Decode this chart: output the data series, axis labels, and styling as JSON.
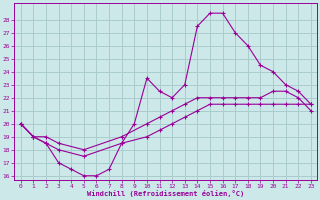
{
  "bg_color": "#cce8e8",
  "grid_color": "#aacccc",
  "line_color": "#990099",
  "xlabel": "Windchill (Refroidissement éolien,°C)",
  "xlim": [
    0,
    23
  ],
  "ylim": [
    16,
    29
  ],
  "xticks": [
    0,
    1,
    2,
    3,
    4,
    5,
    6,
    7,
    8,
    9,
    10,
    11,
    12,
    13,
    14,
    15,
    16,
    17,
    18,
    19,
    20,
    21,
    22,
    23
  ],
  "yticks": [
    16,
    17,
    18,
    19,
    20,
    21,
    22,
    23,
    24,
    25,
    26,
    27,
    28
  ],
  "curve1_x": [
    0,
    1,
    2,
    3,
    4,
    5,
    6,
    7,
    8,
    9,
    10,
    11,
    12,
    13,
    14,
    15,
    16,
    17,
    18,
    19,
    20,
    21,
    22,
    23
  ],
  "curve1_y": [
    20.0,
    19.0,
    18.5,
    17.0,
    16.5,
    16.0,
    16.0,
    16.5,
    18.5,
    20.0,
    23.5,
    22.5,
    22.0,
    23.0,
    27.5,
    28.5,
    28.5,
    27.0,
    26.0,
    24.5,
    24.0,
    23.0,
    22.5,
    21.5
  ],
  "curve2_x": [
    0,
    1,
    2,
    3,
    5,
    8,
    10,
    11,
    12,
    13,
    14,
    15,
    16,
    17,
    18,
    19,
    20,
    21,
    22,
    23
  ],
  "curve2_y": [
    20.0,
    19.0,
    19.0,
    18.5,
    18.0,
    19.0,
    20.0,
    20.5,
    21.0,
    21.5,
    22.0,
    22.0,
    22.0,
    22.0,
    22.0,
    22.0,
    22.5,
    22.5,
    22.0,
    21.0
  ],
  "curve3_x": [
    0,
    1,
    2,
    3,
    5,
    8,
    10,
    11,
    12,
    13,
    14,
    15,
    16,
    17,
    18,
    19,
    20,
    21,
    22,
    23
  ],
  "curve3_y": [
    20.0,
    19.0,
    18.5,
    18.0,
    17.5,
    18.5,
    19.0,
    19.5,
    20.0,
    20.5,
    21.0,
    21.5,
    21.5,
    21.5,
    21.5,
    21.5,
    21.5,
    21.5,
    21.5,
    21.5
  ]
}
